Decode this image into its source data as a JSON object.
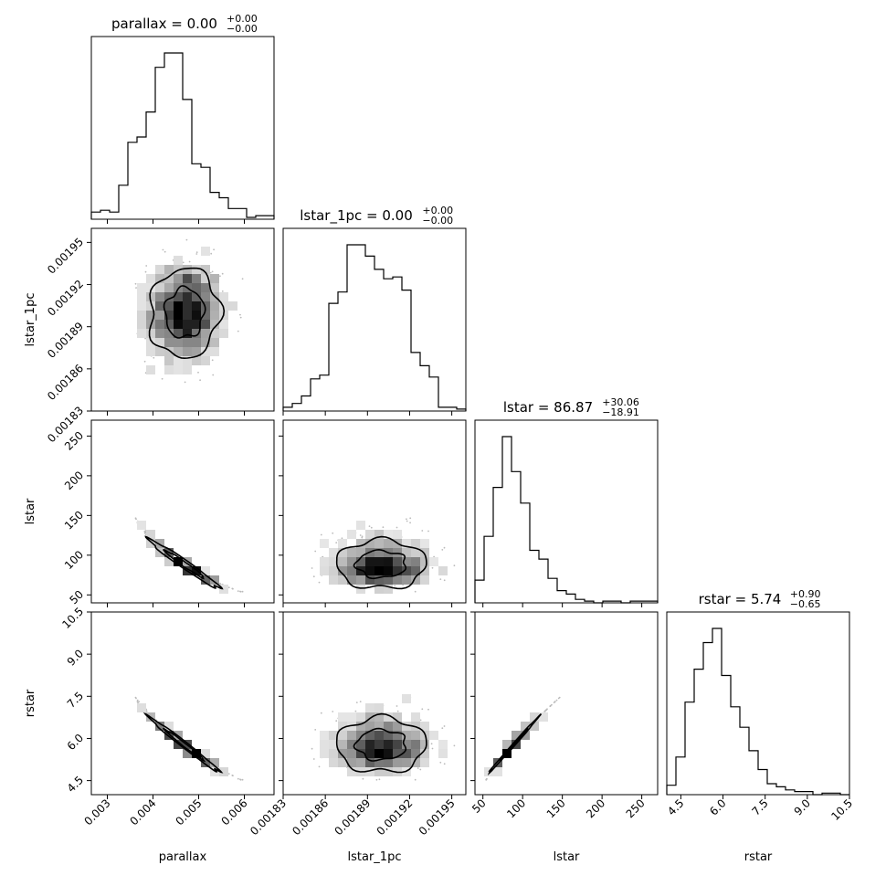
{
  "chart_data": {
    "type": "corner",
    "variables": [
      "parallax",
      "lstar_1pc",
      "lstar",
      "rstar"
    ],
    "axis_labels": [
      "parallax",
      "lstar_1pc",
      "lstar",
      "rstar"
    ],
    "ranges": [
      [
        0.00265,
        0.00665
      ],
      [
        0.00183,
        0.00196
      ],
      [
        40,
        270
      ],
      [
        4.0,
        10.5
      ]
    ],
    "ticks": [
      [
        "0.003",
        "0.004",
        "0.005",
        "0.006"
      ],
      [
        "0.00183",
        "0.00186",
        "0.00189",
        "0.00192",
        "0.00195"
      ],
      [
        "50",
        "100",
        "150",
        "200",
        "250"
      ],
      [
        "4.5",
        "6.0",
        "7.5",
        "9.0",
        "10.5"
      ]
    ],
    "titles": [
      {
        "text": "parallax = 0.00",
        "sup": "+0.00",
        "sub": "−0.00"
      },
      {
        "text": "lstar_1pc = 0.00",
        "sup": "+0.00",
        "sub": "−0.00"
      },
      {
        "text": "lstar = 86.87",
        "sup": "+30.06",
        "sub": "−18.91"
      },
      {
        "text": "rstar = 5.74",
        "sup": "+0.90",
        "sub": "−0.65"
      }
    ],
    "histograms": [
      {
        "variable": "parallax",
        "bin_edges": [
          0.00265,
          0.00285,
          0.00305,
          0.00325,
          0.00345,
          0.00365,
          0.00385,
          0.00405,
          0.00425,
          0.00445,
          0.00465,
          0.00485,
          0.00505,
          0.00525,
          0.00545,
          0.00565,
          0.00585,
          0.00605,
          0.00625,
          0.00645,
          0.00665
        ],
        "counts": [
          4,
          5,
          4,
          19,
          43,
          46,
          60,
          85,
          93,
          93,
          67,
          31,
          29,
          15,
          12,
          6,
          6,
          1,
          2,
          2
        ]
      },
      {
        "variable": "lstar_1pc",
        "bin_edges": [
          0.00183,
          0.0018365,
          0.001843,
          0.0018495,
          0.001856,
          0.0018625,
          0.001869,
          0.0018755,
          0.001882,
          0.0018885,
          0.001895,
          0.0019015,
          0.001908,
          0.0019145,
          0.001921,
          0.0019275,
          0.001934,
          0.0019405,
          0.001947,
          0.0019535,
          0.00196
        ],
        "counts": [
          2,
          4,
          8,
          17,
          19,
          57,
          63,
          88,
          88,
          82,
          75,
          70,
          71,
          64,
          31,
          24,
          18,
          2,
          2,
          1
        ]
      },
      {
        "variable": "lstar",
        "bin_edges": [
          40,
          51.5,
          63,
          74.5,
          86,
          97.5,
          109,
          120.5,
          132,
          143.5,
          155,
          166.5,
          178,
          189.5,
          201,
          212.5,
          224,
          235.5,
          247,
          258.5,
          270
        ],
        "counts": [
          13,
          38,
          66,
          95,
          75,
          57,
          30,
          25,
          14,
          7,
          5,
          2,
          1,
          0,
          1,
          1,
          0,
          1,
          1,
          1
        ]
      },
      {
        "variable": "rstar",
        "bin_edges": [
          4.0,
          4.325,
          4.65,
          4.975,
          5.3,
          5.625,
          5.95,
          6.275,
          6.6,
          6.925,
          7.25,
          7.575,
          7.9,
          8.225,
          8.55,
          8.875,
          9.2,
          9.525,
          9.85,
          10.175,
          10.5
        ],
        "counts": [
          6,
          24,
          59,
          80,
          97,
          106,
          76,
          56,
          43,
          28,
          16,
          7,
          5,
          3,
          2,
          2,
          0,
          1,
          1,
          0
        ]
      }
    ],
    "scatter_panels": [
      {
        "x": "parallax",
        "y": "lstar_1pc",
        "relation": "uncorrelated",
        "x_mean": 0.0047,
        "y_mean": 0.0019,
        "x_sd": 0.0004,
        "y_sd": 1.8e-05,
        "density_peak": {
          "x": 0.0048,
          "y": 0.0019
        }
      },
      {
        "x": "parallax",
        "y": "lstar",
        "relation": "lstar proportional to 1/parallax^2",
        "x_mean": 0.0047,
        "y_mean": 86.87,
        "density_peak": {
          "x": 0.0048,
          "y": 82
        }
      },
      {
        "x": "lstar_1pc",
        "y": "lstar",
        "relation": "uncorrelated",
        "x_mean": 0.0019,
        "y_mean": 86.87,
        "density_peak": {
          "x": 0.00189,
          "y": 82
        }
      },
      {
        "x": "parallax",
        "y": "rstar",
        "relation": "rstar proportional to 1/parallax",
        "x_mean": 0.0047,
        "y_mean": 5.74,
        "density_peak": {
          "x": 0.0048,
          "y": 5.6
        }
      },
      {
        "x": "lstar_1pc",
        "y": "rstar",
        "relation": "uncorrelated",
        "x_mean": 0.0019,
        "y_mean": 5.74,
        "density_peak": {
          "x": 0.00189,
          "y": 5.6
        }
      },
      {
        "x": "lstar",
        "y": "rstar",
        "relation": "rstar proportional to sqrt(lstar)",
        "x_mean": 86.87,
        "y_mean": 5.74,
        "density_peak": {
          "x": 82,
          "y": 5.6
        }
      }
    ],
    "colors": {
      "line": "#000000",
      "density_dark": "#000000",
      "density_light": "#f2f2f2",
      "points": "#bbbbbb"
    },
    "grid": false,
    "legend": "none"
  }
}
